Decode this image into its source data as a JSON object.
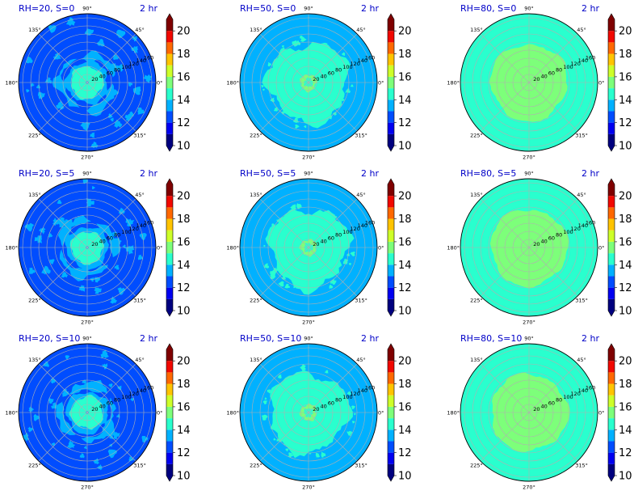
{
  "colors": {
    "levels": [
      {
        "from": 10,
        "to": 11,
        "color": "#00007f"
      },
      {
        "from": 11,
        "to": 12,
        "color": "#0000f1"
      },
      {
        "from": 12,
        "to": 13,
        "color": "#004dff"
      },
      {
        "from": 13,
        "to": 14,
        "color": "#00b1ff"
      },
      {
        "from": 14,
        "to": 15,
        "color": "#29ffce"
      },
      {
        "from": 15,
        "to": 16,
        "color": "#7dff7a"
      },
      {
        "from": 16,
        "to": 17,
        "color": "#ceff29"
      },
      {
        "from": 17,
        "to": 18,
        "color": "#ffc400"
      },
      {
        "from": 18,
        "to": 19,
        "color": "#ff6800"
      },
      {
        "from": 19,
        "to": 20,
        "color": "#f10800"
      },
      {
        "from": 20,
        "to": 21,
        "color": "#7f0000"
      }
    ],
    "under": "#00007f",
    "over": "#7f0000",
    "grid": "#b0b0b0"
  },
  "chart_data": [
    {
      "type": "polar-contour",
      "title": "RH=20, S=0",
      "time_label": "2 hr",
      "rh": 20,
      "s": 0,
      "fields": {
        "background": 12.5,
        "ring": 13.5,
        "inner": 14.5,
        "core": 13.5
      }
    },
    {
      "type": "polar-contour",
      "title": "RH=50, S=0",
      "time_label": "2 hr",
      "rh": 50,
      "s": 0,
      "fields": {
        "background": 13.5,
        "ring": 14.5,
        "inner": 14.5,
        "core": 15.5
      }
    },
    {
      "type": "polar-contour",
      "title": "RH=80, S=0",
      "time_label": "2 hr",
      "rh": 80,
      "s": 0,
      "fields": {
        "background": 14.5,
        "ring": 15.5,
        "inner": 15.5,
        "core": 15.5
      }
    },
    {
      "type": "polar-contour",
      "title": "RH=20, S=5",
      "time_label": "2 hr",
      "rh": 20,
      "s": 5,
      "fields": {
        "background": 12.5,
        "ring": 13.5,
        "inner": 14.5,
        "core": 13.5
      }
    },
    {
      "type": "polar-contour",
      "title": "RH=50, S=5",
      "time_label": "2 hr",
      "rh": 50,
      "s": 5,
      "fields": {
        "background": 13.5,
        "ring": 14.5,
        "inner": 14.5,
        "core": 15.5
      }
    },
    {
      "type": "polar-contour",
      "title": "RH=80, S=5",
      "time_label": "2 hr",
      "rh": 80,
      "s": 5,
      "fields": {
        "background": 14.5,
        "ring": 15.5,
        "inner": 15.5,
        "core": 15.5
      }
    },
    {
      "type": "polar-contour",
      "title": "RH=20, S=10",
      "time_label": "2 hr",
      "rh": 20,
      "s": 10,
      "fields": {
        "background": 12.5,
        "ring": 13.5,
        "inner": 14.5,
        "core": 13.5
      }
    },
    {
      "type": "polar-contour",
      "title": "RH=50, S=10",
      "time_label": "2 hr",
      "rh": 50,
      "s": 10,
      "fields": {
        "background": 13.5,
        "ring": 14.5,
        "inner": 14.5,
        "core": 15.5
      }
    },
    {
      "type": "polar-contour",
      "title": "RH=80, S=10",
      "time_label": "2 hr",
      "rh": 80,
      "s": 10,
      "fields": {
        "background": 14.5,
        "ring": 15.5,
        "inner": 15.5,
        "core": 15.5
      }
    }
  ],
  "polar_axes": {
    "angle_ticks": [
      0,
      45,
      90,
      135,
      180,
      225,
      270,
      315
    ],
    "angle_labels": [
      "0°",
      "45°",
      "90°",
      "135°",
      "180°",
      "225°",
      "270°",
      "315°"
    ],
    "radial_ticks": [
      20,
      40,
      60,
      80,
      100,
      120,
      140,
      160
    ],
    "radial_max": 170,
    "radial_label_angle": 22.5
  },
  "colorbar": {
    "range": [
      10,
      21
    ],
    "tick_values": [
      10,
      12,
      14,
      16,
      18,
      20
    ],
    "tick_labels": [
      "10",
      "12",
      "14",
      "16",
      "18",
      "20"
    ],
    "extend": "both"
  }
}
